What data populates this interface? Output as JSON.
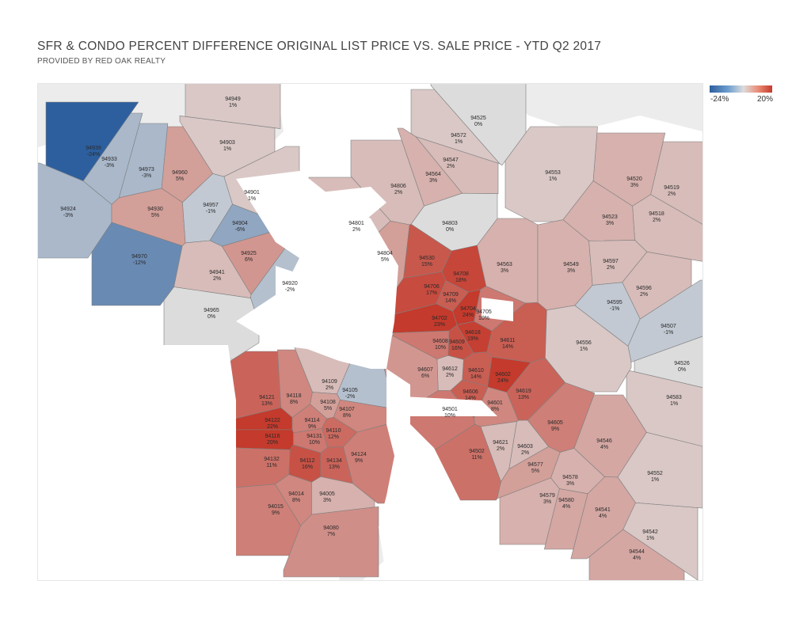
{
  "header": {
    "title": "SFR & CONDO PERCENT DIFFERENCE ORIGINAL LIST PRICE VS. SALE PRICE -  YTD Q2 2017",
    "subtitle": "PROVIDED BY RED OAK REALTY"
  },
  "legend": {
    "min_label": "-24%",
    "max_label": "20%",
    "min_value": -24,
    "max_value": 20,
    "colors": {
      "negative": "#2d5f9e",
      "neutral": "#dcdcdc",
      "positive": "#c43a2c"
    }
  },
  "zips": [
    {
      "zip": "94949",
      "pct": "1%",
      "value": 1
    },
    {
      "zip": "94903",
      "pct": "1%",
      "value": 1
    },
    {
      "zip": "94939",
      "pct": "-24%",
      "value": -24
    },
    {
      "zip": "94933",
      "pct": "-3%",
      "value": -3
    },
    {
      "zip": "94973",
      "pct": "-3%",
      "value": -3
    },
    {
      "zip": "94960",
      "pct": "5%",
      "value": 5
    },
    {
      "zip": "94901",
      "pct": "1%",
      "value": 1
    },
    {
      "zip": "94924",
      "pct": "-3%",
      "value": -3
    },
    {
      "zip": "94930",
      "pct": "5%",
      "value": 5
    },
    {
      "zip": "94957",
      "pct": "-1%",
      "value": -1
    },
    {
      "zip": "94904",
      "pct": "-6%",
      "value": -6
    },
    {
      "zip": "94925",
      "pct": "6%",
      "value": 6
    },
    {
      "zip": "94970",
      "pct": "-12%",
      "value": -12
    },
    {
      "zip": "94941",
      "pct": "2%",
      "value": 2
    },
    {
      "zip": "94920",
      "pct": "-2%",
      "value": -2
    },
    {
      "zip": "94965",
      "pct": "0%",
      "value": 0
    },
    {
      "zip": "94525",
      "pct": "0%",
      "value": 0
    },
    {
      "zip": "94572",
      "pct": "1%",
      "value": 1
    },
    {
      "zip": "94547",
      "pct": "2%",
      "value": 2
    },
    {
      "zip": "94564",
      "pct": "3%",
      "value": 3
    },
    {
      "zip": "94806",
      "pct": "2%",
      "value": 2
    },
    {
      "zip": "94553",
      "pct": "1%",
      "value": 1
    },
    {
      "zip": "94520",
      "pct": "3%",
      "value": 3
    },
    {
      "zip": "94519",
      "pct": "2%",
      "value": 2
    },
    {
      "zip": "94518",
      "pct": "2%",
      "value": 2
    },
    {
      "zip": "94523",
      "pct": "3%",
      "value": 3
    },
    {
      "zip": "94801",
      "pct": "2%",
      "value": 2
    },
    {
      "zip": "94803",
      "pct": "0%",
      "value": 0
    },
    {
      "zip": "94804",
      "pct": "5%",
      "value": 5
    },
    {
      "zip": "94530",
      "pct": "15%",
      "value": 15
    },
    {
      "zip": "94708",
      "pct": "18%",
      "value": 18
    },
    {
      "zip": "94706",
      "pct": "17%",
      "value": 17
    },
    {
      "zip": "94709",
      "pct": "14%",
      "value": 14
    },
    {
      "zip": "94563",
      "pct": "3%",
      "value": 3
    },
    {
      "zip": "94549",
      "pct": "3%",
      "value": 3
    },
    {
      "zip": "94597",
      "pct": "2%",
      "value": 2
    },
    {
      "zip": "94596",
      "pct": "2%",
      "value": 2
    },
    {
      "zip": "94595",
      "pct": "-1%",
      "value": -1
    },
    {
      "zip": "94507",
      "pct": "-1%",
      "value": -1
    },
    {
      "zip": "94704",
      "pct": "24%",
      "value": 24
    },
    {
      "zip": "94702",
      "pct": "23%",
      "value": 23
    },
    {
      "zip": "94705",
      "pct": "10%",
      "value": 10
    },
    {
      "zip": "94618",
      "pct": "19%",
      "value": 19
    },
    {
      "zip": "94608",
      "pct": "10%",
      "value": 10
    },
    {
      "zip": "94609",
      "pct": "16%",
      "value": 16
    },
    {
      "zip": "94611",
      "pct": "14%",
      "value": 14
    },
    {
      "zip": "94556",
      "pct": "1%",
      "value": 1
    },
    {
      "zip": "94526",
      "pct": "0%",
      "value": 0
    },
    {
      "zip": "94607",
      "pct": "6%",
      "value": 6
    },
    {
      "zip": "94612",
      "pct": "2%",
      "value": 2
    },
    {
      "zip": "94610",
      "pct": "14%",
      "value": 14
    },
    {
      "zip": "94602",
      "pct": "24%",
      "value": 24
    },
    {
      "zip": "94606",
      "pct": "14%",
      "value": 14
    },
    {
      "zip": "94619",
      "pct": "13%",
      "value": 13
    },
    {
      "zip": "94601",
      "pct": "8%",
      "value": 8
    },
    {
      "zip": "94501",
      "pct": "10%",
      "value": 10
    },
    {
      "zip": "94583",
      "pct": "1%",
      "value": 1
    },
    {
      "zip": "94121",
      "pct": "13%",
      "value": 13
    },
    {
      "zip": "94118",
      "pct": "8%",
      "value": 8
    },
    {
      "zip": "94109",
      "pct": "2%",
      "value": 2
    },
    {
      "zip": "94105",
      "pct": "-2%",
      "value": -2
    },
    {
      "zip": "94108",
      "pct": "5%",
      "value": 5
    },
    {
      "zip": "94107",
      "pct": "8%",
      "value": 8
    },
    {
      "zip": "94122",
      "pct": "22%",
      "value": 22
    },
    {
      "zip": "94114",
      "pct": "9%",
      "value": 9
    },
    {
      "zip": "94116",
      "pct": "20%",
      "value": 20
    },
    {
      "zip": "94131",
      "pct": "10%",
      "value": 10
    },
    {
      "zip": "94110",
      "pct": "12%",
      "value": 12
    },
    {
      "zip": "94605",
      "pct": "9%",
      "value": 9
    },
    {
      "zip": "94132",
      "pct": "11%",
      "value": 11
    },
    {
      "zip": "94112",
      "pct": "16%",
      "value": 16
    },
    {
      "zip": "94134",
      "pct": "13%",
      "value": 13
    },
    {
      "zip": "94124",
      "pct": "9%",
      "value": 9
    },
    {
      "zip": "94546",
      "pct": "4%",
      "value": 4
    },
    {
      "zip": "94621",
      "pct": "2%",
      "value": 2
    },
    {
      "zip": "94603",
      "pct": "2%",
      "value": 2
    },
    {
      "zip": "94502",
      "pct": "11%",
      "value": 11
    },
    {
      "zip": "94577",
      "pct": "5%",
      "value": 5
    },
    {
      "zip": "94552",
      "pct": "1%",
      "value": 1
    },
    {
      "zip": "94578",
      "pct": "3%",
      "value": 3
    },
    {
      "zip": "94014",
      "pct": "8%",
      "value": 8
    },
    {
      "zip": "94005",
      "pct": "3%",
      "value": 3
    },
    {
      "zip": "94579",
      "pct": "3%",
      "value": 3
    },
    {
      "zip": "94580",
      "pct": "4%",
      "value": 4
    },
    {
      "zip": "94541",
      "pct": "4%",
      "value": 4
    },
    {
      "zip": "94015",
      "pct": "9%",
      "value": 9
    },
    {
      "zip": "94080",
      "pct": "7%",
      "value": 7
    },
    {
      "zip": "94542",
      "pct": "1%",
      "value": 1
    },
    {
      "zip": "94544",
      "pct": "4%",
      "value": 4
    }
  ]
}
